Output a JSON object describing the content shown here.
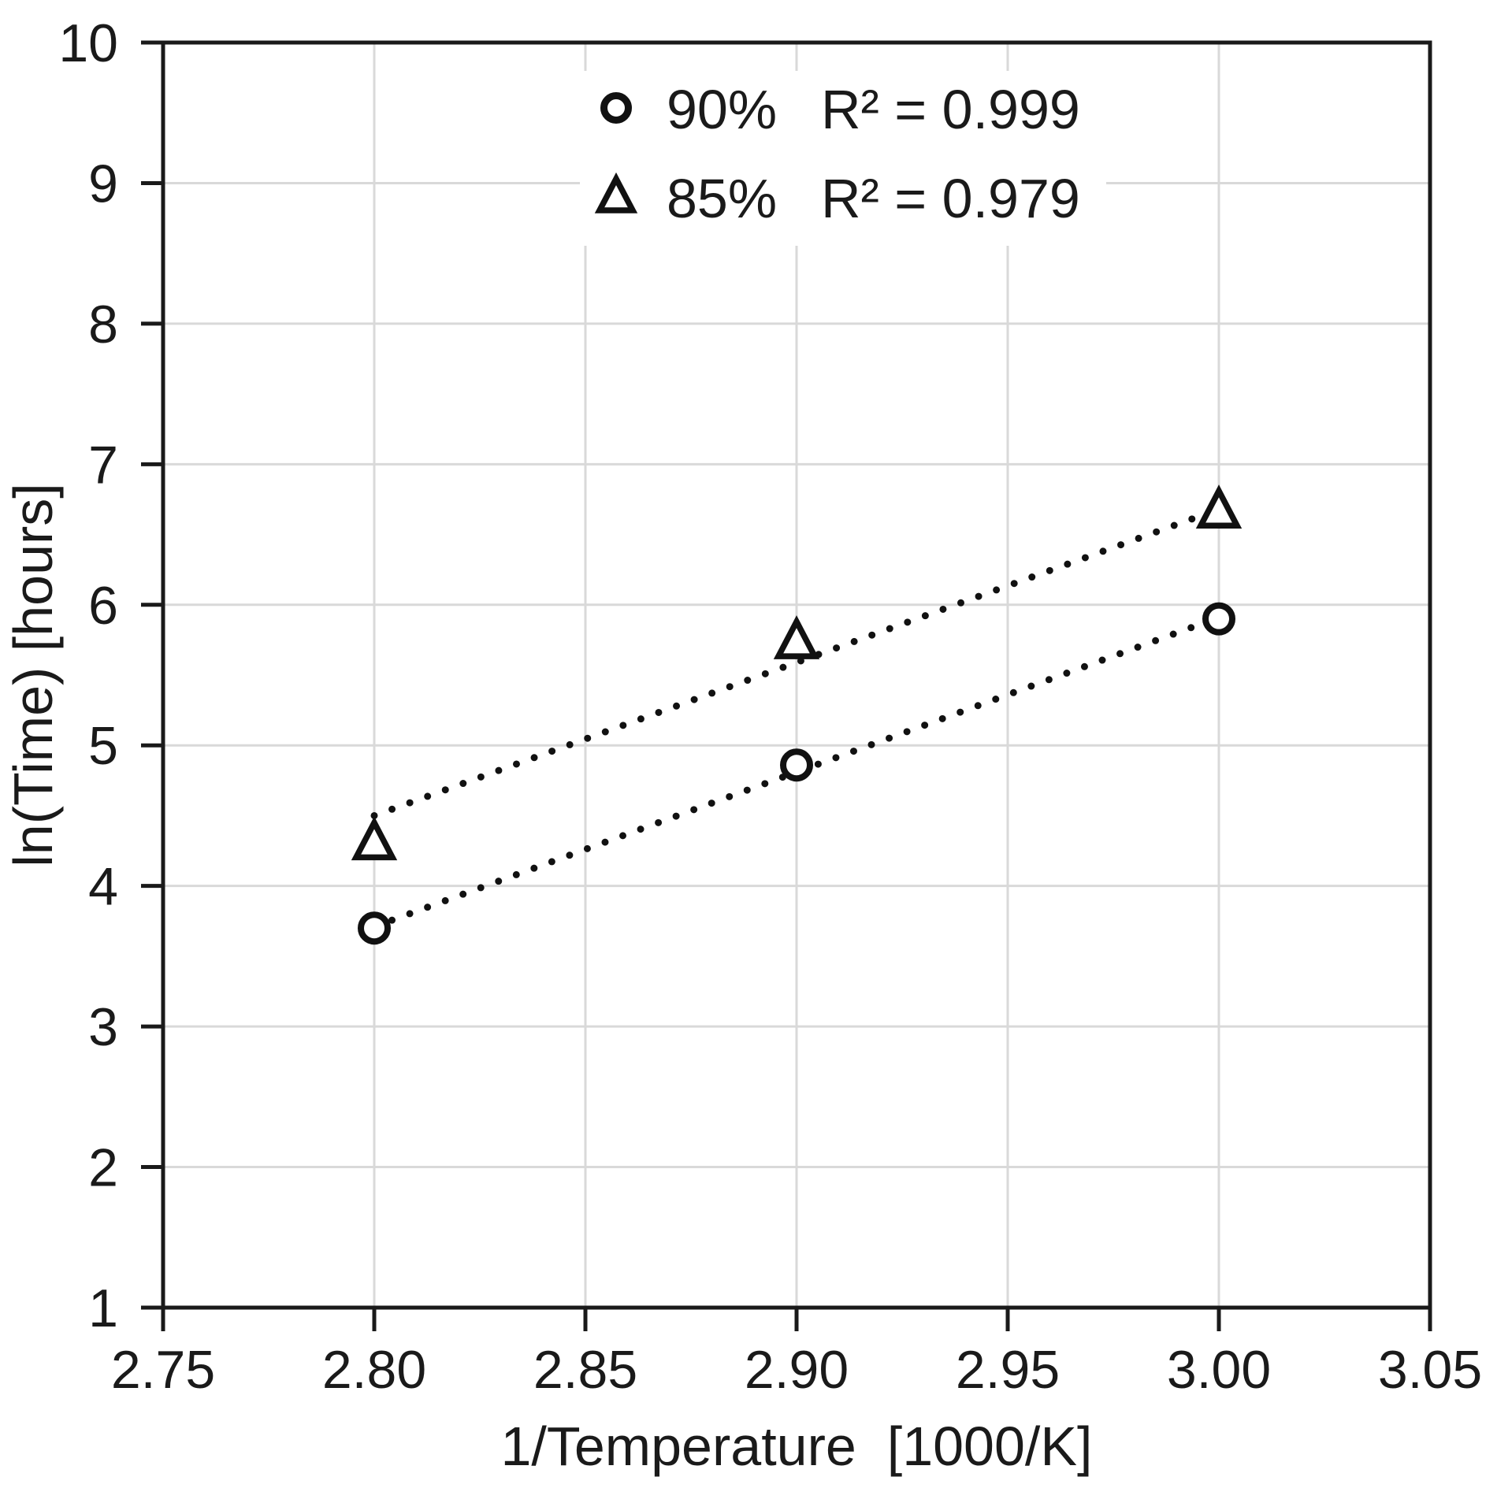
{
  "chart_data": {
    "type": "scatter",
    "title": "",
    "xlabel": "1/Temperature  [1000/K]",
    "ylabel": "ln(Time) [hours]",
    "xlim": [
      2.75,
      3.05
    ],
    "ylim": [
      1,
      10
    ],
    "xtick_step": 0.05,
    "ytick_step": 1,
    "xtick_labels": [
      "2.75",
      "2.80",
      "2.85",
      "2.90",
      "2.95",
      "3.00",
      "3.05"
    ],
    "ytick_labels": [
      "1",
      "2",
      "3",
      "4",
      "5",
      "6",
      "7",
      "8",
      "9",
      "10"
    ],
    "grid": true,
    "legend_position": "top-center",
    "series": [
      {
        "name": "90%",
        "r2_label": "R² = 0.999",
        "marker": "circle",
        "x": [
          2.8,
          2.9,
          3.0
        ],
        "y": [
          3.7,
          4.86,
          5.9
        ],
        "trend": {
          "x": [
            2.8,
            3.0
          ],
          "y": [
            3.71,
            5.91
          ]
        }
      },
      {
        "name": "85%",
        "r2_label": "R² = 0.979",
        "marker": "triangle",
        "x": [
          2.8,
          2.9,
          3.0
        ],
        "y": [
          4.31,
          5.74,
          6.67
        ],
        "trend": {
          "x": [
            2.8,
            3.0
          ],
          "y": [
            4.5,
            6.68
          ]
        }
      }
    ],
    "colors": {
      "background": "#ffffff",
      "axis": "#1a1a1a",
      "grid": "#d9d9d9",
      "marker": "#111111",
      "text": "#1a1a1a"
    }
  }
}
